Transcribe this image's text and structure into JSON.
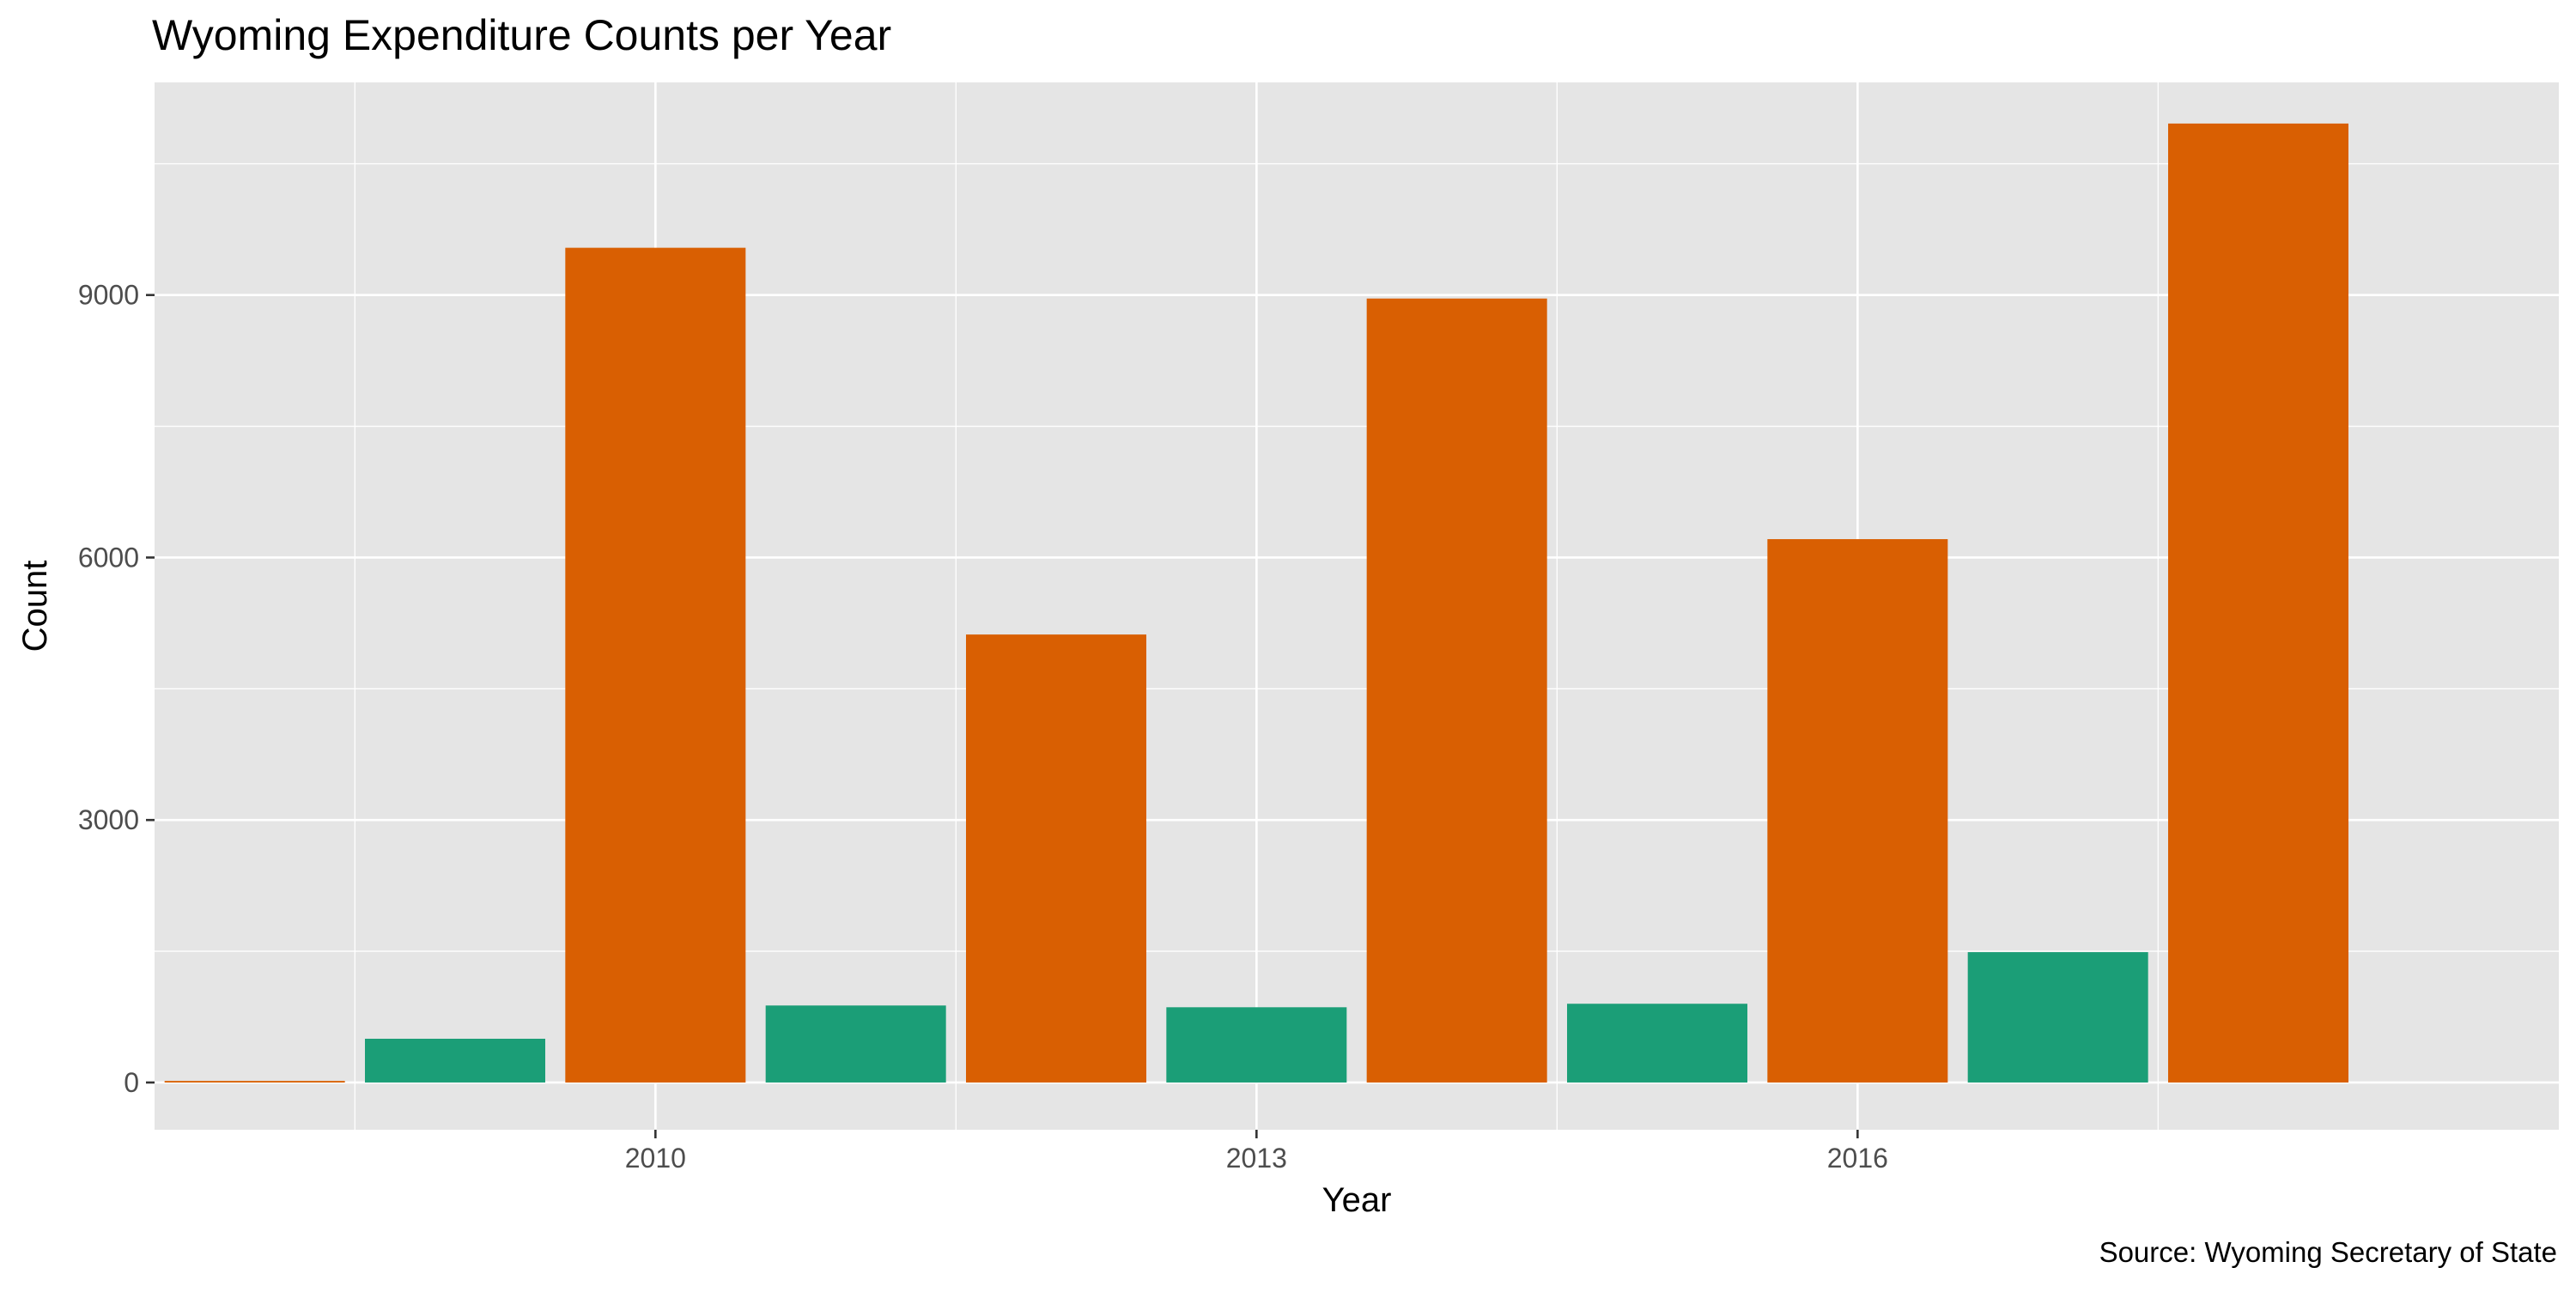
{
  "chart_data": {
    "type": "bar",
    "title": "Wyoming Expenditure Counts per Year",
    "xlabel": "Year",
    "ylabel": "Count",
    "caption": "Source: Wyoming Secretary of State",
    "x": [
      2008,
      2009,
      2010,
      2011,
      2012,
      2013,
      2014,
      2015,
      2016,
      2017,
      2018
    ],
    "values": [
      18,
      500,
      9540,
      880,
      5120,
      860,
      8960,
      900,
      6210,
      1490,
      10960
    ],
    "bar_colors": [
      "#d95f02",
      "#1b9e77",
      "#d95f02",
      "#1b9e77",
      "#d95f02",
      "#1b9e77",
      "#d95f02",
      "#1b9e77",
      "#d95f02",
      "#1b9e77",
      "#d95f02"
    ],
    "x_ticks": [
      2010,
      2013,
      2016
    ],
    "y_ticks": [
      0,
      3000,
      6000,
      9000
    ],
    "xlim": [
      2007.5,
      2019.5
    ],
    "ylim": [
      -540,
      11430
    ],
    "grid": true,
    "legend": "none",
    "colors": {
      "even_year": "#d95f02",
      "odd_year": "#1b9e77",
      "panel_background": "#e5e5e5",
      "grid": "#ffffff",
      "text": "#000000",
      "tick_text": "#4d4d4d"
    }
  }
}
